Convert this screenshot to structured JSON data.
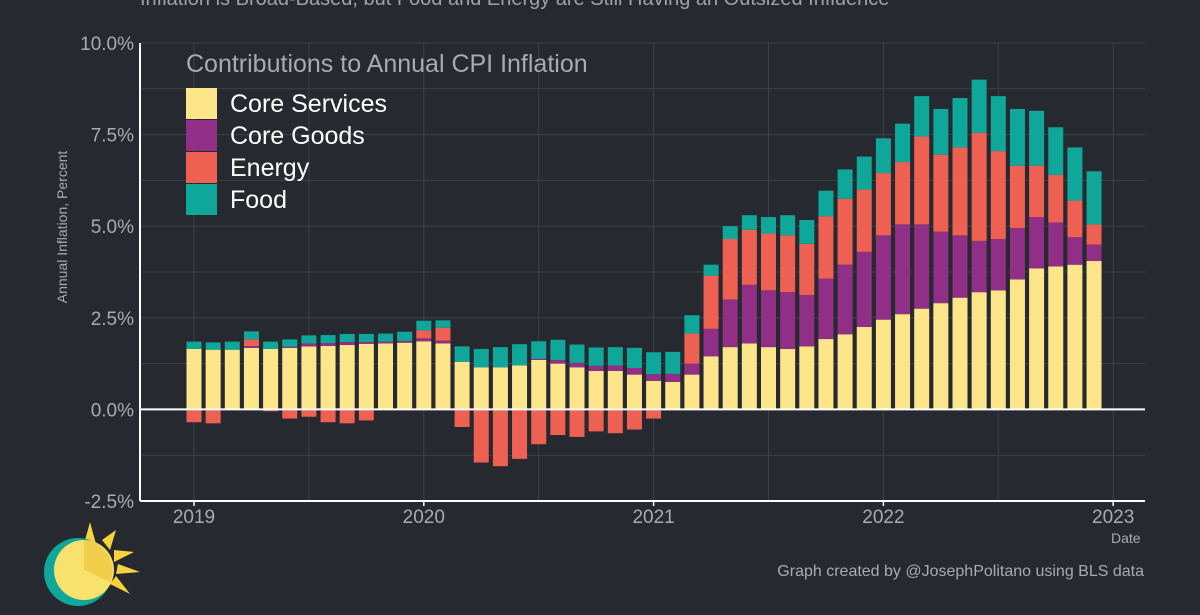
{
  "page": {
    "title": "Inflation is Broad-Based, but Food and Energy are Still Having an Outsized Influence",
    "credit": "Graph created by @JosephPolitano using BLS data",
    "logo_icon": "sun-logo-icon"
  },
  "chart_data": {
    "type": "bar",
    "stacked": true,
    "title": "Contributions to Annual CPI Inflation",
    "ylabel": "Annual Inflation, Percent",
    "xlabel": "Date",
    "ylim": [
      -2.5,
      10
    ],
    "yticks": [
      -2.5,
      0,
      2.5,
      5,
      7.5,
      10
    ],
    "ytick_labels": [
      "-2.5%",
      "0.0%",
      "2.5%",
      "5.0%",
      "7.5%",
      "10.0%"
    ],
    "xticks": [
      "2019",
      "2020",
      "2021",
      "2022",
      "2023"
    ],
    "legend_position": "top-left",
    "grid": true,
    "categories": [
      "2019-01",
      "2019-02",
      "2019-03",
      "2019-04",
      "2019-05",
      "2019-06",
      "2019-07",
      "2019-08",
      "2019-09",
      "2019-10",
      "2019-11",
      "2019-12",
      "2020-01",
      "2020-02",
      "2020-03",
      "2020-04",
      "2020-05",
      "2020-06",
      "2020-07",
      "2020-08",
      "2020-09",
      "2020-10",
      "2020-11",
      "2020-12",
      "2021-01",
      "2021-02",
      "2021-03",
      "2021-04",
      "2021-05",
      "2021-06",
      "2021-07",
      "2021-08",
      "2021-09",
      "2021-10",
      "2021-11",
      "2021-12",
      "2022-01",
      "2022-02",
      "2022-03",
      "2022-04",
      "2022-05",
      "2022-06",
      "2022-07",
      "2022-08",
      "2022-09",
      "2022-10",
      "2022-11",
      "2022-12"
    ],
    "series": [
      {
        "name": "Core Services",
        "color": "#fde68a",
        "values": [
          1.65,
          1.63,
          1.63,
          1.68,
          1.65,
          1.68,
          1.72,
          1.73,
          1.76,
          1.79,
          1.8,
          1.82,
          1.86,
          1.8,
          1.3,
          1.15,
          1.15,
          1.2,
          1.35,
          1.25,
          1.15,
          1.05,
          1.05,
          0.95,
          0.78,
          0.75,
          0.95,
          1.45,
          1.7,
          1.8,
          1.7,
          1.65,
          1.72,
          1.92,
          2.05,
          2.25,
          2.45,
          2.6,
          2.75,
          2.9,
          3.05,
          3.2,
          3.25,
          3.55,
          3.85,
          3.9,
          3.95,
          4.05
        ]
      },
      {
        "name": "Core Goods",
        "color": "#912f86",
        "values": [
          0.0,
          0.0,
          0.0,
          0.05,
          0.0,
          0.03,
          0.08,
          0.08,
          0.08,
          0.05,
          0.05,
          0.05,
          0.08,
          0.08,
          0.0,
          0.0,
          0.0,
          0.0,
          0.03,
          0.1,
          0.12,
          0.14,
          0.15,
          0.18,
          0.18,
          0.22,
          0.3,
          0.75,
          1.3,
          1.6,
          1.55,
          1.55,
          1.4,
          1.65,
          1.9,
          2.05,
          2.3,
          2.45,
          2.3,
          1.95,
          1.7,
          1.4,
          1.4,
          1.4,
          1.4,
          1.2,
          0.75,
          0.45
        ]
      },
      {
        "name": "Energy",
        "color": "#ee6152",
        "values": [
          -0.35,
          -0.38,
          0.0,
          0.18,
          -0.05,
          -0.25,
          -0.2,
          -0.35,
          -0.38,
          -0.3,
          0.0,
          0.0,
          0.22,
          0.35,
          -0.48,
          -1.45,
          -1.55,
          -1.35,
          -0.95,
          -0.7,
          -0.75,
          -0.6,
          -0.65,
          -0.55,
          -0.25,
          0.0,
          0.82,
          1.45,
          1.65,
          1.5,
          1.55,
          1.55,
          1.4,
          1.7,
          1.8,
          1.7,
          1.7,
          1.7,
          2.4,
          2.1,
          2.4,
          2.95,
          2.4,
          1.7,
          1.4,
          1.3,
          1.0,
          0.55
        ]
      },
      {
        "name": "Food",
        "color": "#0fa79a",
        "values": [
          0.2,
          0.2,
          0.22,
          0.22,
          0.2,
          0.2,
          0.22,
          0.22,
          0.22,
          0.22,
          0.22,
          0.25,
          0.26,
          0.2,
          0.42,
          0.5,
          0.55,
          0.58,
          0.48,
          0.55,
          0.5,
          0.5,
          0.5,
          0.55,
          0.6,
          0.6,
          0.5,
          0.3,
          0.35,
          0.4,
          0.45,
          0.55,
          0.65,
          0.7,
          0.8,
          0.9,
          0.95,
          1.05,
          1.1,
          1.25,
          1.35,
          1.45,
          1.5,
          1.55,
          1.5,
          1.3,
          1.45,
          1.45
        ]
      }
    ]
  }
}
